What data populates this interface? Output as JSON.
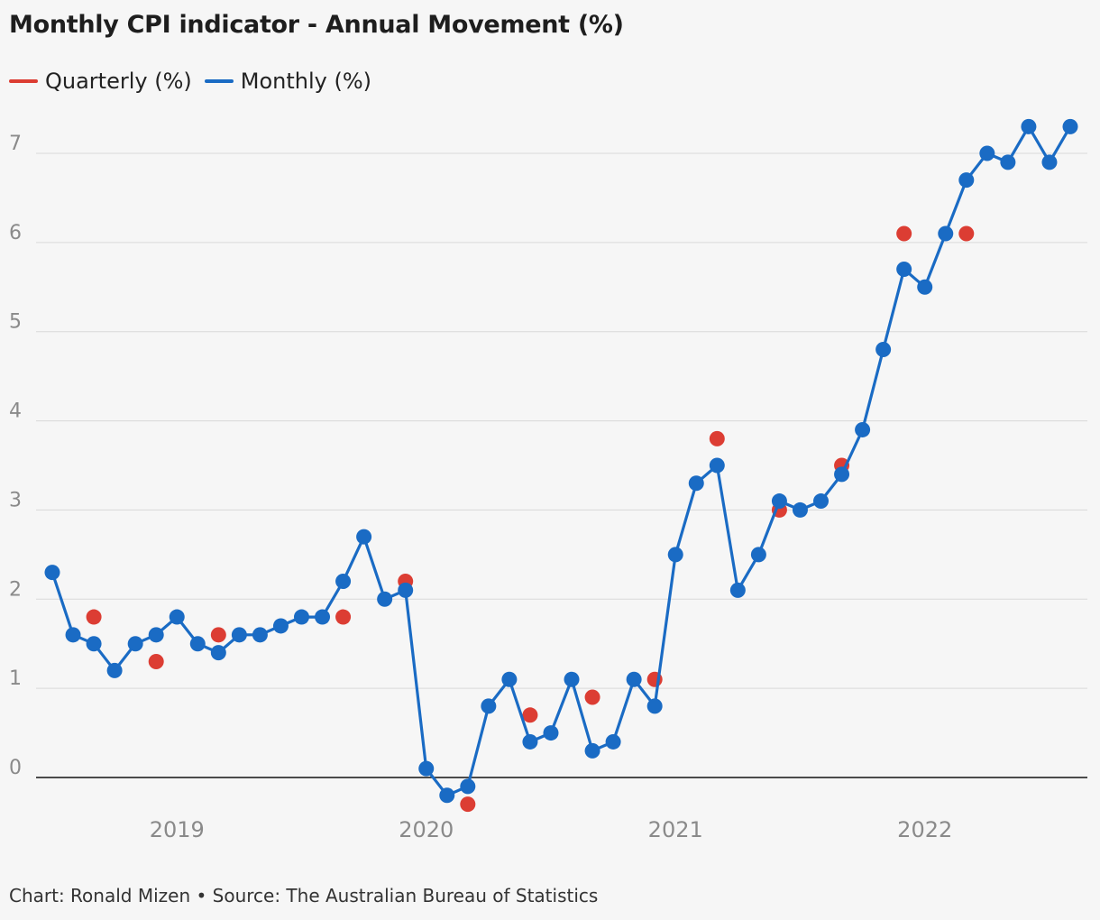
{
  "title": "Monthly CPI indicator - Annual Movement  (%)",
  "footer": "Chart: Ronald Mizen • Source: The Australian Bureau of Statistics",
  "colors": {
    "quarterly": "#dc3d33",
    "monthly": "#1a6bc4",
    "grid": "#d9d9d9",
    "zero_line": "#121212",
    "background": "#f6f6f6"
  },
  "legend": [
    {
      "label": "Quarterly (%)",
      "color": "#dc3d33"
    },
    {
      "label": "Monthly (%)",
      "color": "#1a6bc4"
    }
  ],
  "chart_data": {
    "type": "line",
    "title": "Monthly CPI indicator - Annual Movement  (%)",
    "xlabel": "",
    "ylabel": "",
    "ylim": [
      -0.5,
      7.5
    ],
    "yticks": [
      0,
      1,
      2,
      3,
      4,
      5,
      6,
      7
    ],
    "xlim": [
      "2018-10",
      "2022-11"
    ],
    "xticks": [
      {
        "label": "2019",
        "x": "2019-03"
      },
      {
        "label": "2020",
        "x": "2020-03"
      },
      {
        "label": "2021",
        "x": "2021-03"
      },
      {
        "label": "2022",
        "x": "2022-03"
      }
    ],
    "grid": true,
    "legend_position": "top-left",
    "series": [
      {
        "name": "Monthly (%)",
        "style": "line-with-markers",
        "color": "#1a6bc4",
        "points": [
          [
            "2018-09",
            2.3
          ],
          [
            "2018-10",
            1.6
          ],
          [
            "2018-11",
            1.5
          ],
          [
            "2018-12",
            1.2
          ],
          [
            "2019-01",
            1.5
          ],
          [
            "2019-02",
            1.6
          ],
          [
            "2019-03",
            1.8
          ],
          [
            "2019-04",
            1.5
          ],
          [
            "2019-05",
            1.4
          ],
          [
            "2019-06",
            1.6
          ],
          [
            "2019-07",
            1.6
          ],
          [
            "2019-08",
            1.7
          ],
          [
            "2019-09",
            1.8
          ],
          [
            "2019-10",
            1.8
          ],
          [
            "2019-11",
            2.2
          ],
          [
            "2019-12",
            2.7
          ],
          [
            "2020-01",
            2.0
          ],
          [
            "2020-02",
            2.1
          ],
          [
            "2020-03",
            0.1
          ],
          [
            "2020-04",
            -0.2
          ],
          [
            "2020-05",
            -0.1
          ],
          [
            "2020-06",
            0.8
          ],
          [
            "2020-07",
            1.1
          ],
          [
            "2020-08",
            0.4
          ],
          [
            "2020-09",
            0.5
          ],
          [
            "2020-10",
            1.1
          ],
          [
            "2020-11",
            0.3
          ],
          [
            "2020-12",
            0.4
          ],
          [
            "2021-01",
            1.1
          ],
          [
            "2021-02",
            0.8
          ],
          [
            "2021-03",
            2.5
          ],
          [
            "2021-04",
            3.3
          ],
          [
            "2021-05",
            3.5
          ],
          [
            "2021-06",
            2.1
          ],
          [
            "2021-07",
            2.5
          ],
          [
            "2021-08",
            3.1
          ],
          [
            "2021-09",
            3.0
          ],
          [
            "2021-10",
            3.1
          ],
          [
            "2021-11",
            3.4
          ],
          [
            "2021-12",
            3.9
          ],
          [
            "2022-01",
            4.8
          ],
          [
            "2022-02",
            5.7
          ],
          [
            "2022-03",
            5.5
          ],
          [
            "2022-04",
            6.1
          ],
          [
            "2022-05",
            6.7
          ],
          [
            "2022-06",
            7.0
          ],
          [
            "2022-07",
            6.9
          ],
          [
            "2022-08",
            7.3
          ],
          [
            "2022-09",
            6.9
          ],
          [
            "2022-10",
            7.3
          ]
        ]
      },
      {
        "name": "Quarterly (%)",
        "style": "markers",
        "color": "#dc3d33",
        "points": [
          [
            "2018-11",
            1.8
          ],
          [
            "2019-02",
            1.3
          ],
          [
            "2019-05",
            1.6
          ],
          [
            "2019-11",
            1.8
          ],
          [
            "2020-02",
            2.2
          ],
          [
            "2020-05",
            -0.3
          ],
          [
            "2020-08",
            0.7
          ],
          [
            "2020-11",
            0.9
          ],
          [
            "2021-02",
            1.1
          ],
          [
            "2021-05",
            3.8
          ],
          [
            "2021-08",
            3.0
          ],
          [
            "2021-11",
            3.5
          ],
          [
            "2022-02",
            6.1
          ],
          [
            "2022-05",
            6.1
          ]
        ]
      }
    ]
  }
}
